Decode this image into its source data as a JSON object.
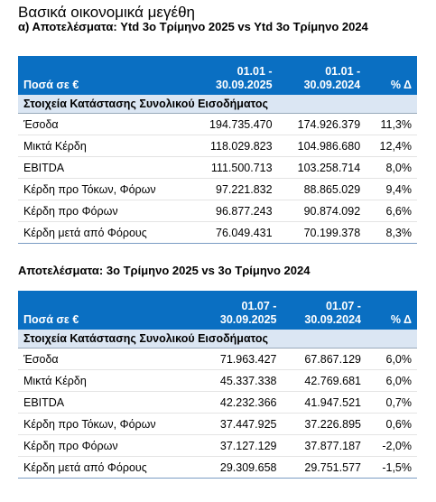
{
  "header": {
    "title": "Βασικά οικονομικά μεγέθη"
  },
  "sections": [
    {
      "title": "α) Αποτελέσματα: Ytd 3ο Τρίμηνο 2025 vs Ytd 3ο Τρίμηνο 2024",
      "table": {
        "columns": [
          "Ποσά σε €",
          [
            "01.01 -",
            "30.09.2025"
          ],
          [
            "01.01 -",
            "30.09.2024"
          ],
          "% Δ"
        ],
        "group": "Στοιχεία Κατάστασης Συνολικού Εισοδήματος",
        "rows": [
          [
            "Έσοδα",
            "194.735.470",
            "174.926.379",
            "11,3%"
          ],
          [
            "Μικτά Κέρδη",
            "118.029.823",
            "104.986.680",
            "12,4%"
          ],
          [
            "EBITDA",
            "111.500.713",
            "103.258.714",
            "8,0%"
          ],
          [
            "Κέρδη προ Τόκων, Φόρων",
            "97.221.832",
            "88.865.029",
            "9,4%"
          ],
          [
            "Κέρδη προ Φόρων",
            "96.877.243",
            "90.874.092",
            "6,6%"
          ],
          [
            "Κέρδη μετά από Φόρους",
            "76.049.431",
            "70.199.378",
            "8,3%"
          ]
        ]
      }
    },
    {
      "title": "Αποτελέσματα: 3ο Τρίμηνο 2025 vs 3ο Τρίμηνο 2024",
      "table": {
        "columns": [
          "Ποσά σε €",
          [
            "01.07 -",
            "30.09.2025"
          ],
          [
            "01.07 -",
            "30.09.2024"
          ],
          "% Δ"
        ],
        "group": "Στοιχεία Κατάστασης Συνολικού Εισοδήματος",
        "rows": [
          [
            "Έσοδα",
            "71.963.427",
            "67.867.129",
            "6,0%"
          ],
          [
            "Μικτά Κέρδη",
            "45.337.338",
            "42.769.681",
            "6,0%"
          ],
          [
            "EBITDA",
            "42.232.366",
            "41.947.521",
            "0,7%"
          ],
          [
            "Κέρδη προ Τόκων, Φόρων",
            "37.447.925",
            "37.226.895",
            "0,6%"
          ],
          [
            "Κέρδη προ Φόρων",
            "37.127.129",
            "37.877.187",
            "-2,0%"
          ],
          [
            "Κέρδη μετά από Φόρους",
            "29.309.658",
            "29.751.577",
            "-1,5%"
          ]
        ]
      }
    }
  ]
}
